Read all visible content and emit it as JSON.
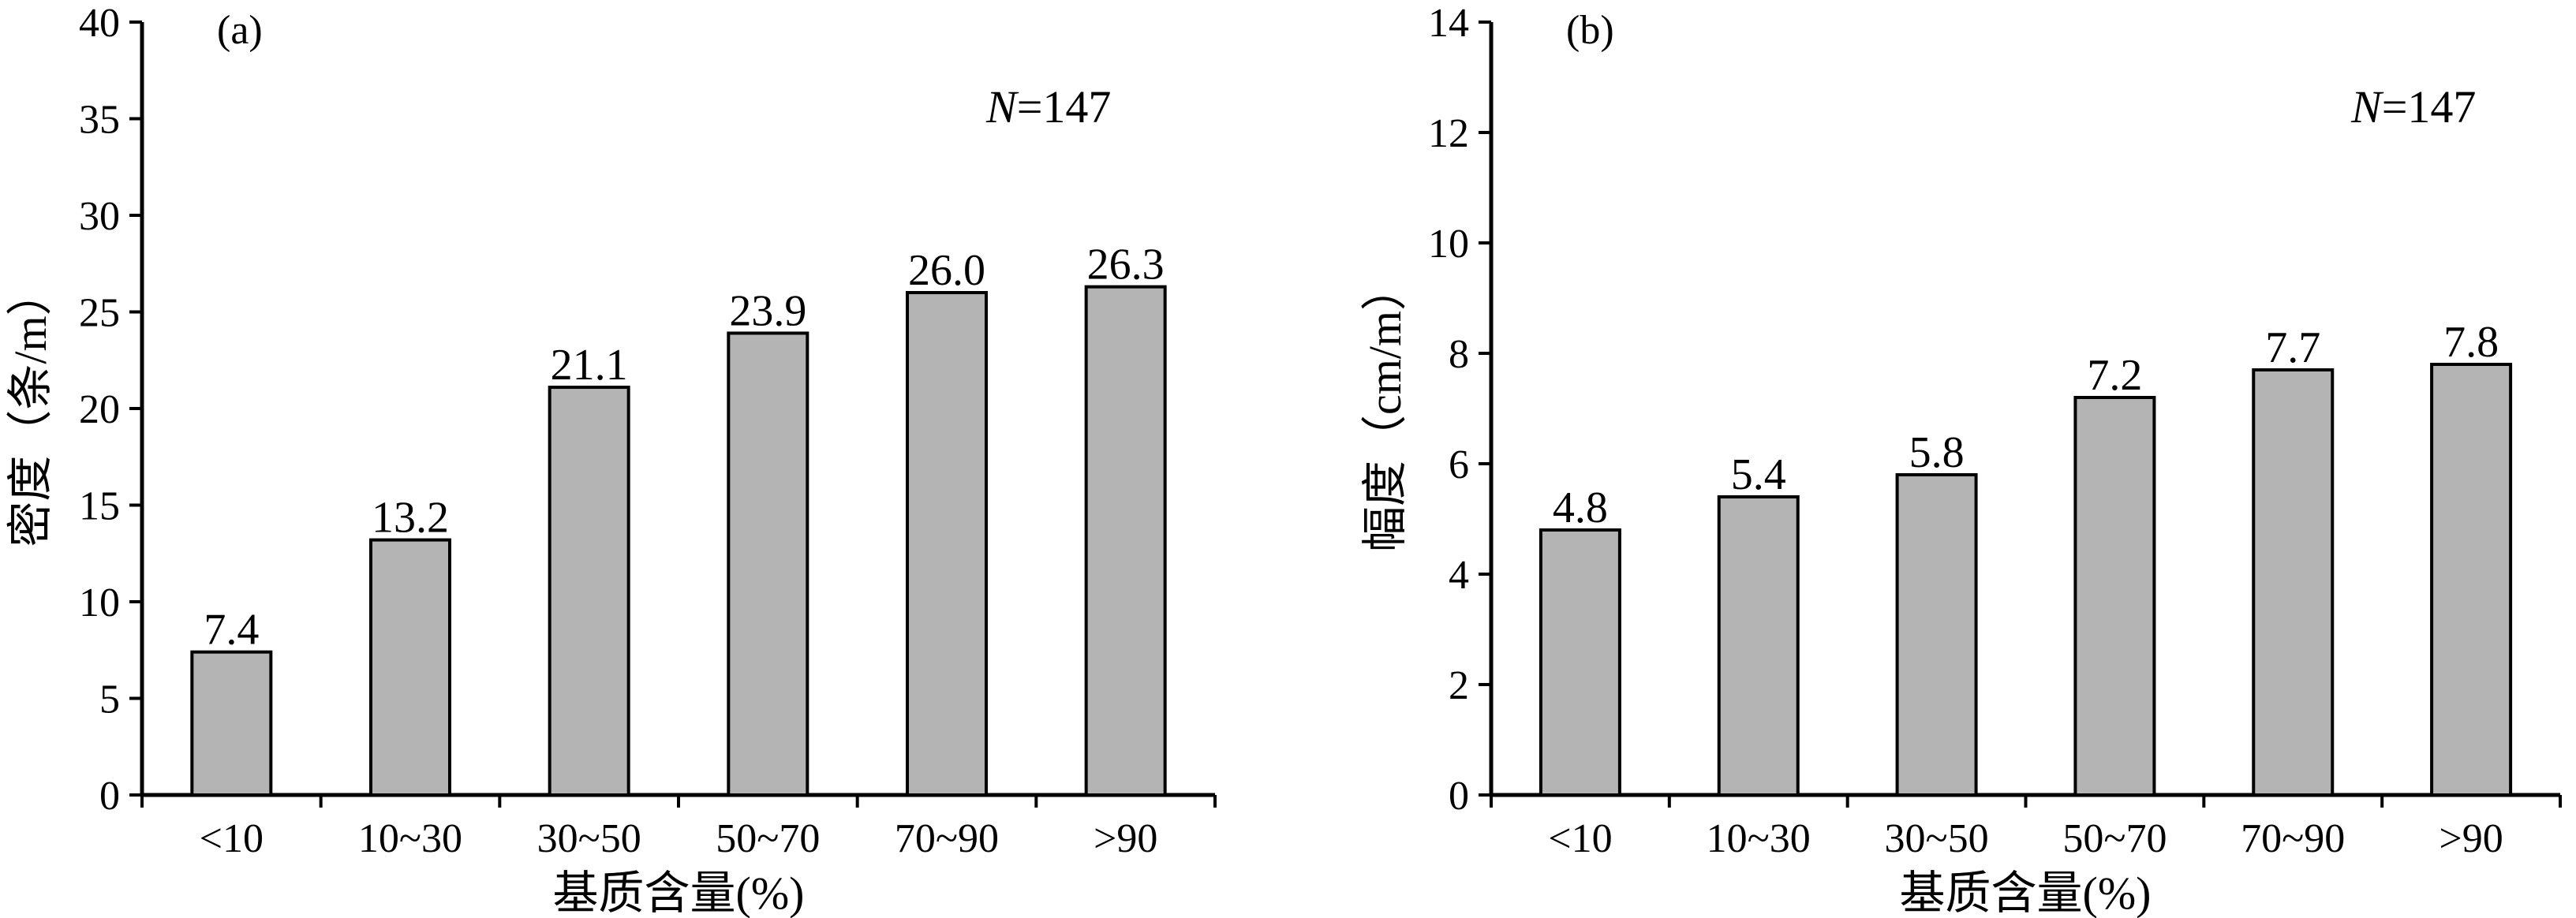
{
  "chart_data": [
    {
      "type": "bar",
      "panel_label": "(a)",
      "annotation": {
        "italic": "N",
        "rest": "=147"
      },
      "categories": [
        "<10",
        "10~30",
        "30~50",
        "50~70",
        "70~90",
        ">90"
      ],
      "values": [
        7.4,
        13.2,
        21.1,
        23.9,
        26.0,
        26.3
      ],
      "value_labels": [
        "7.4",
        "13.2",
        "21.1",
        "23.9",
        "26.0",
        "26.3"
      ],
      "ylabel": "密度（条/m）",
      "xlabel": "基质含量(%)",
      "ylim": [
        0,
        40
      ],
      "yticks": [
        0,
        5,
        10,
        15,
        20,
        25,
        30,
        35,
        40
      ],
      "grid": false,
      "bar_color": "#b4b4b4"
    },
    {
      "type": "bar",
      "panel_label": "(b)",
      "annotation": {
        "italic": "N",
        "rest": "=147"
      },
      "categories": [
        "<10",
        "10~30",
        "30~50",
        "50~70",
        "70~90",
        ">90"
      ],
      "values": [
        4.8,
        5.4,
        5.8,
        7.2,
        7.7,
        7.8
      ],
      "value_labels": [
        "4.8",
        "5.4",
        "5.8",
        "7.2",
        "7.7",
        "7.8"
      ],
      "ylabel": "幅度（cm/m）",
      "xlabel": "基质含量(%)",
      "ylim": [
        0,
        14
      ],
      "yticks": [
        0,
        2,
        4,
        6,
        8,
        10,
        12,
        14
      ],
      "grid": false,
      "bar_color": "#b4b4b4"
    }
  ]
}
